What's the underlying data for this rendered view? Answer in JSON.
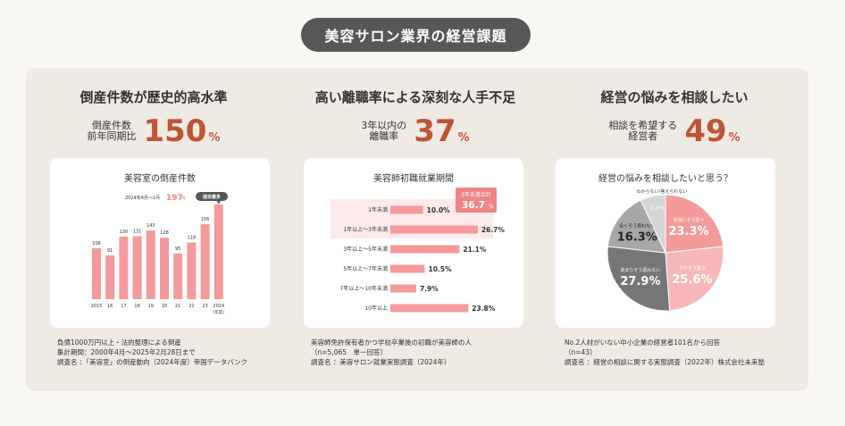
{
  "page_title": "美容サロン業界の経営課題",
  "sections": [
    {
      "heading": "倒産件数が歴史的高水準",
      "stat_label_1": "倒産件数",
      "stat_label_2": "前年同期比",
      "stat_value": "150",
      "stat_unit": "%",
      "card_title": "美容室の倒産件数",
      "notes": [
        "負債1000万円以上・法的整理による倒産",
        "集計期間：2000年4月〜2025年2月28日まで",
        "調査名 ：「美容室」の倒産動向（2024年度）帝国データバンク"
      ]
    },
    {
      "heading": "高い離職率による深刻な人手不足",
      "stat_label_1": "3年以内の",
      "stat_label_2": "離職率",
      "stat_value": "37",
      "stat_unit": "%",
      "card_title": "美容師初職就業期間",
      "notes": [
        "美容師免許保有者かつ学校卒業後の初職が美容師の人",
        "（n=5,065　単一回答）",
        "調査名 ：美容サロン就業実態調査（2024年）"
      ]
    },
    {
      "heading": "経営の悩みを相談したい",
      "stat_label_1": "相談を希望する",
      "stat_label_2": "経営者",
      "stat_value": "49",
      "stat_unit": "%",
      "card_title": "経営の悩みを相談したいと思う？",
      "notes": [
        "No.2人材がいない中小企業の経営者101名から回答",
        "（n=43）",
        "調査名 ：経営の相談に関する実態調査（2022年）株式会社未来塾"
      ]
    }
  ],
  "chart_data": [
    {
      "type": "bar",
      "title": "美容室の倒産件数",
      "categories": [
        "2015",
        "16",
        "17",
        "18",
        "19",
        "20",
        "21",
        "22",
        "23",
        "2024"
      ],
      "values": [
        106,
        91,
        130,
        131,
        143,
        128,
        95,
        118,
        156,
        197
      ],
      "x_unit_label": "(年度)",
      "highlight": {
        "label": "2024年4月〜2月",
        "value": "197",
        "unit": "件",
        "badge": "過去最多"
      },
      "ylim": [
        0,
        210
      ],
      "color": "#f49a9b"
    },
    {
      "type": "bar",
      "orientation": "horizontal",
      "title": "美容師初職就業期間",
      "categories": [
        "1年未満",
        "1年以上〜3年未満",
        "3年以上〜5年未満",
        "5年以上〜7年未満",
        "7年以上〜10年未満",
        "10年以上"
      ],
      "values": [
        10.0,
        26.7,
        21.1,
        10.5,
        7.9,
        23.8
      ],
      "value_labels": [
        "10.0%",
        "26.7%",
        "21.1%",
        "10.5%",
        "7.9%",
        "23.8%"
      ],
      "callout": {
        "label": "3年未満合計",
        "value": "36.7",
        "unit": "%"
      },
      "xlim": [
        0,
        30
      ],
      "color": "#f49a9b"
    },
    {
      "type": "pie",
      "title": "経営の悩みを相談したいと思う？",
      "slices": [
        {
          "label": "非常にそう思う",
          "value": 23.3,
          "color": "#f49a9b"
        },
        {
          "label": "ややそう思う",
          "value": 25.6,
          "color": "#f7b7b8"
        },
        {
          "label": "あまりそう思わない",
          "value": 27.9,
          "color": "#767676"
        },
        {
          "label": "全くそう思わない",
          "value": 16.3,
          "color": "#a7a7a7"
        },
        {
          "label": "わからない/答えられない",
          "value": 7.0,
          "color": "#d6d6d6"
        }
      ]
    }
  ]
}
